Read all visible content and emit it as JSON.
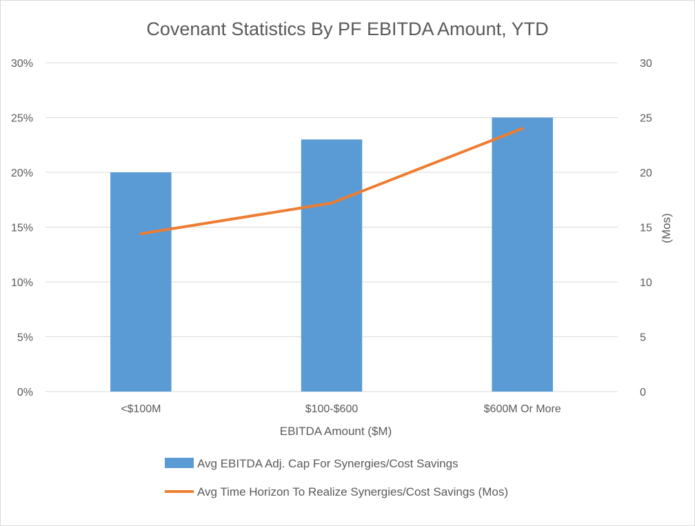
{
  "chart_data": {
    "type": "bar",
    "title": "Covenant Statistics By PF EBITDA Amount, YTD",
    "categories": [
      "<$100M",
      "$100-$600",
      "$600M Or More"
    ],
    "xlabel": "EBITDA Amount ($M)",
    "ylabel": "",
    "y2label": "(Mos)",
    "ylim": [
      0,
      30
    ],
    "y2lim": [
      0,
      30
    ],
    "yticks": [
      "0%",
      "5%",
      "10%",
      "15%",
      "20%",
      "25%",
      "30%"
    ],
    "y2ticks": [
      "0",
      "5",
      "10",
      "15",
      "20",
      "25",
      "30"
    ],
    "grid": true,
    "legend_position": "bottom",
    "series": [
      {
        "name": "Avg EBITDA Adj. Cap For Synergies/Cost Savings",
        "type": "bar",
        "axis": "left",
        "unit": "%",
        "color": "#5B9BD5",
        "values": [
          20,
          23,
          25
        ]
      },
      {
        "name": "Avg Time Horizon To Realize Synergies/Cost Savings (Mos)",
        "type": "line",
        "axis": "right",
        "unit": "months",
        "color": "#ED7D31",
        "values": [
          14.4,
          17.2,
          24
        ]
      }
    ]
  }
}
